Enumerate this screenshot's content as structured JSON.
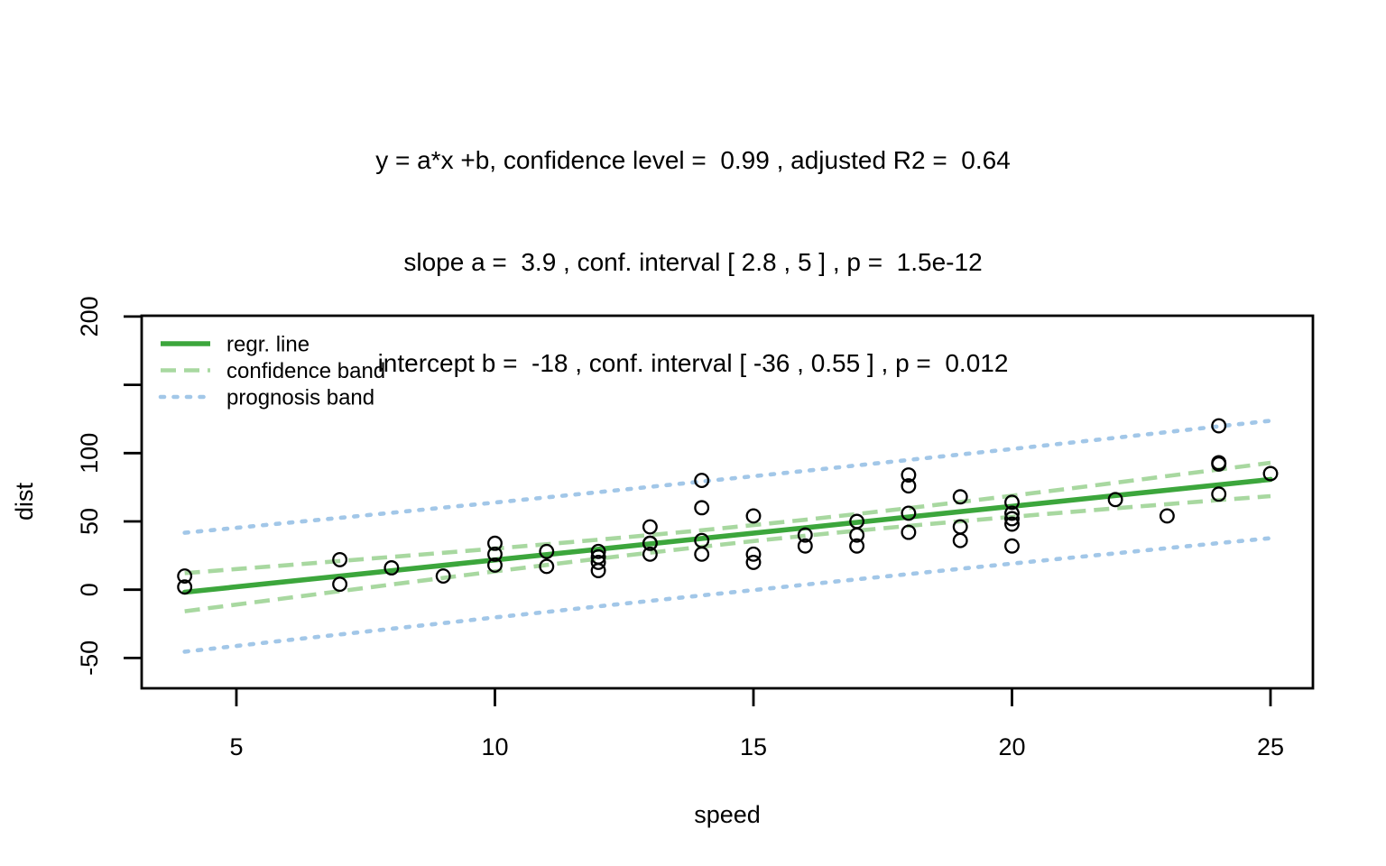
{
  "title": {
    "line1": "y = a*x +b, confidence level =  0.99 , adjusted R2 =  0.64",
    "line2": "slope a =  3.9 , conf. interval [ 2.8 , 5 ] , p =  1.5e-12",
    "line3": "intercept b =  -18 , conf. interval [ -36 , 0.55 ] , p =  0.012"
  },
  "chart_data": {
    "type": "scatter",
    "xlabel": "speed",
    "ylabel": "dist",
    "xlim": [
      3.168,
      25.82
    ],
    "ylim": [
      -72.2,
      200.6
    ],
    "x_ticks": [
      5,
      10,
      15,
      20,
      25
    ],
    "x_tick_labels": [
      "5",
      "10",
      "15",
      "20",
      "25"
    ],
    "y_ticks": [
      -50,
      0,
      50,
      100,
      150,
      200
    ],
    "y_tick_labels": [
      "-50",
      "0",
      "50",
      "100",
      "",
      "200"
    ],
    "grid": false,
    "points": [
      [
        4,
        2
      ],
      [
        4,
        10
      ],
      [
        7,
        4
      ],
      [
        7,
        22
      ],
      [
        8,
        16
      ],
      [
        9,
        10
      ],
      [
        10,
        18
      ],
      [
        10,
        26
      ],
      [
        10,
        34
      ],
      [
        11,
        17
      ],
      [
        11,
        28
      ],
      [
        12,
        14
      ],
      [
        12,
        20
      ],
      [
        12,
        24
      ],
      [
        12,
        28
      ],
      [
        13,
        26
      ],
      [
        13,
        34
      ],
      [
        13,
        34
      ],
      [
        13,
        46
      ],
      [
        14,
        26
      ],
      [
        14,
        36
      ],
      [
        14,
        60
      ],
      [
        14,
        80
      ],
      [
        15,
        20
      ],
      [
        15,
        26
      ],
      [
        15,
        54
      ],
      [
        16,
        32
      ],
      [
        16,
        40
      ],
      [
        17,
        32
      ],
      [
        17,
        40
      ],
      [
        17,
        50
      ],
      [
        18,
        42
      ],
      [
        18,
        56
      ],
      [
        18,
        76
      ],
      [
        18,
        84
      ],
      [
        19,
        36
      ],
      [
        19,
        46
      ],
      [
        19,
        68
      ],
      [
        20,
        32
      ],
      [
        20,
        48
      ],
      [
        20,
        52
      ],
      [
        20,
        56
      ],
      [
        20,
        64
      ],
      [
        22,
        66
      ],
      [
        23,
        54
      ],
      [
        24,
        70
      ],
      [
        24,
        92
      ],
      [
        24,
        93
      ],
      [
        24,
        120
      ],
      [
        25,
        85
      ]
    ],
    "regression": {
      "slope": 3.9324,
      "intercept": -17.5791,
      "x_range": [
        4,
        25
      ]
    },
    "confidence_band": {
      "x": [
        4,
        5,
        6,
        7,
        8,
        9,
        10,
        11,
        12,
        13,
        14,
        15,
        16,
        17,
        18,
        19,
        20,
        21,
        22,
        23,
        24,
        25
      ],
      "upper": [
        12.1,
        15.1,
        18.0,
        21.0,
        24.0,
        27.0,
        30.1,
        33.3,
        36.6,
        40.0,
        43.5,
        47.3,
        51.2,
        55.4,
        59.7,
        64.2,
        68.8,
        73.5,
        78.3,
        83.2,
        88.0,
        92.9
      ],
      "lower": [
        -15.8,
        -10.9,
        -6.0,
        -1.1,
        3.8,
        8.6,
        13.4,
        18.1,
        22.7,
        27.1,
        31.4,
        35.6,
        39.5,
        43.2,
        46.7,
        50.1,
        53.3,
        56.5,
        59.6,
        62.6,
        65.6,
        68.5
      ]
    },
    "prognosis_band": {
      "x": [
        4,
        5,
        6,
        7,
        8,
        9,
        10,
        11,
        12,
        13,
        14,
        15,
        16,
        17,
        18,
        19,
        20,
        21,
        22,
        23,
        24,
        25
      ],
      "upper": [
        41.7,
        45.3,
        49.0,
        52.6,
        56.3,
        60.1,
        63.8,
        67.6,
        71.4,
        75.3,
        79.2,
        83.1,
        87.0,
        91.0,
        95.0,
        99.0,
        103.0,
        107.1,
        111.2,
        115.4,
        119.6,
        123.7
      ],
      "lower": [
        -45.4,
        -41.2,
        -36.9,
        -32.8,
        -28.6,
        -24.5,
        -20.3,
        -16.3,
        -12.2,
        -8.2,
        -4.2,
        -0.3,
        3.7,
        7.6,
        11.4,
        15.3,
        19.1,
        22.9,
        26.6,
        30.4,
        34.1,
        37.7
      ]
    },
    "legend": [
      {
        "label": "regr. line",
        "style": "solid",
        "color": "#3CA63C"
      },
      {
        "label": "confidence band",
        "style": "dashed",
        "color": "#A8D8A0"
      },
      {
        "label": "prognosis band",
        "style": "dotted",
        "color": "#A2C7E8"
      }
    ],
    "colors": {
      "regression": "#3CA63C",
      "confidence": "#A8D8A0",
      "prognosis": "#A2C7E8",
      "points": "#000000",
      "axis": "#000000"
    }
  }
}
